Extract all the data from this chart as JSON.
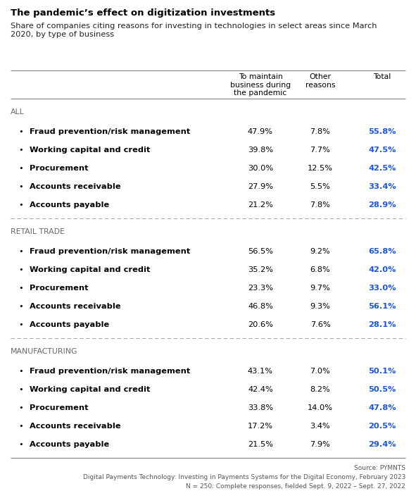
{
  "title": "The pandemic’s effect on digitization investments",
  "subtitle": "Share of companies citing reasons for investing in technologies in select areas since March\n2020, by type of business",
  "col_headers": [
    "To maintain\nbusiness during\nthe pandemic",
    "Other\nreasons",
    "Total"
  ],
  "sections": [
    {
      "name": "ALL",
      "rows": [
        {
          "label": "Fraud prevention/risk management",
          "col1": "47.9%",
          "col2": "7.8%",
          "total": "55.8%"
        },
        {
          "label": "Working capital and credit",
          "col1": "39.8%",
          "col2": "7.7%",
          "total": "47.5%"
        },
        {
          "label": "Procurement",
          "col1": "30.0%",
          "col2": "12.5%",
          "total": "42.5%"
        },
        {
          "label": "Accounts receivable",
          "col1": "27.9%",
          "col2": "5.5%",
          "total": "33.4%"
        },
        {
          "label": "Accounts payable",
          "col1": "21.2%",
          "col2": "7.8%",
          "total": "28.9%"
        }
      ]
    },
    {
      "name": "RETAIL TRADE",
      "rows": [
        {
          "label": "Fraud prevention/risk management",
          "col1": "56.5%",
          "col2": "9.2%",
          "total": "65.8%"
        },
        {
          "label": "Working capital and credit",
          "col1": "35.2%",
          "col2": "6.8%",
          "total": "42.0%"
        },
        {
          "label": "Procurement",
          "col1": "23.3%",
          "col2": "9.7%",
          "total": "33.0%"
        },
        {
          "label": "Accounts receivable",
          "col1": "46.8%",
          "col2": "9.3%",
          "total": "56.1%"
        },
        {
          "label": "Accounts payable",
          "col1": "20.6%",
          "col2": "7.6%",
          "total": "28.1%"
        }
      ]
    },
    {
      "name": "MANUFACTURING",
      "rows": [
        {
          "label": "Fraud prevention/risk management",
          "col1": "43.1%",
          "col2": "7.0%",
          "total": "50.1%"
        },
        {
          "label": "Working capital and credit",
          "col1": "42.4%",
          "col2": "8.2%",
          "total": "50.5%"
        },
        {
          "label": "Procurement",
          "col1": "33.8%",
          "col2": "14.0%",
          "total": "47.8%"
        },
        {
          "label": "Accounts receivable",
          "col1": "17.2%",
          "col2": "3.4%",
          "total": "20.5%"
        },
        {
          "label": "Accounts payable",
          "col1": "21.5%",
          "col2": "7.9%",
          "total": "29.4%"
        }
      ]
    }
  ],
  "footer_lines": [
    "Source: PYMNTS",
    "Digital Payments Technology: Investing in Payments Systems for the Digital Economy, February 2023",
    "N = 250: Complete responses, fielded Sept. 9, 2022 – Sept. 27, 2022"
  ],
  "bg_color": "#ffffff",
  "text_color": "#000000",
  "total_color": "#1a56db",
  "section_label_color": "#666666",
  "title_fontsize": 9.5,
  "subtitle_fontsize": 8.2,
  "col_header_fontsize": 7.8,
  "row_fontsize": 8.2,
  "section_fontsize": 7.8,
  "footer_fontsize": 6.5
}
